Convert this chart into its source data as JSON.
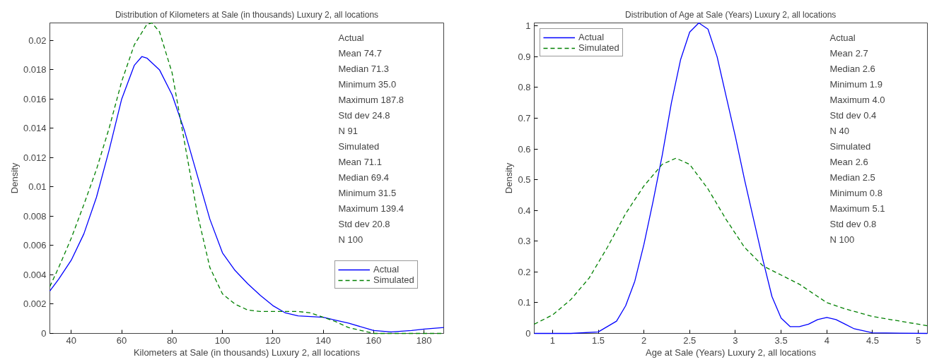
{
  "chart_data": [
    {
      "type": "line",
      "title": "Distribution of Kilometers at Sale (in thousands) Luxury 2, all locations",
      "xlabel": "Kilometers at Sale (in thousands) Luxury 2, all locations",
      "ylabel": "Density",
      "xlim": [
        31.5,
        187.8
      ],
      "xticks": [
        40,
        60,
        80,
        100,
        120,
        140,
        160,
        180
      ],
      "ylim": [
        0,
        0.0212
      ],
      "yticks": [
        0,
        0.002,
        0.004,
        0.006,
        0.008,
        0.01,
        0.012,
        0.014,
        0.016,
        0.018,
        0.02
      ],
      "grid": false,
      "legend": "bottom right",
      "annotations": [
        "Actual",
        "Mean 74.7",
        "Median 71.3",
        "Minimum 35.0",
        "Maximum 187.8",
        "Std dev 24.8",
        "N 91",
        "Simulated",
        "Mean 71.1",
        "Median 69.4",
        "Minimum 31.5",
        "Maximum 139.4",
        "Std dev 20.8",
        "N 100"
      ],
      "series": [
        {
          "name": "Actual",
          "color": "#0000ff",
          "line_style": "solid",
          "x": [
            31.5,
            35,
            40,
            45,
            50,
            55,
            60,
            65,
            68,
            70,
            75,
            80,
            85,
            90,
            95,
            100,
            105,
            110,
            115,
            120,
            125,
            130,
            140,
            145,
            150,
            160,
            167,
            175,
            180,
            187.8
          ],
          "values": [
            0.0029,
            0.0037,
            0.005,
            0.0068,
            0.0093,
            0.0125,
            0.016,
            0.0183,
            0.0189,
            0.0188,
            0.018,
            0.0163,
            0.0138,
            0.0108,
            0.0078,
            0.0055,
            0.0043,
            0.0034,
            0.0026,
            0.0019,
            0.0014,
            0.0012,
            0.0011,
            0.0009,
            0.0007,
            0.0002,
            0.0001,
            0.0002,
            0.0003,
            0.0004
          ]
        },
        {
          "name": "Simulated",
          "color": "#008000",
          "line_style": "dashed",
          "x": [
            31.5,
            35,
            40,
            45,
            50,
            55,
            60,
            65,
            70,
            72,
            75,
            80,
            85,
            90,
            95,
            100,
            105,
            110,
            115,
            120,
            130,
            135,
            140,
            145,
            150,
            155,
            160,
            187.8
          ],
          "values": [
            0.0032,
            0.0045,
            0.0065,
            0.0088,
            0.0112,
            0.014,
            0.0172,
            0.0197,
            0.0211,
            0.0212,
            0.0206,
            0.0178,
            0.013,
            0.0082,
            0.0045,
            0.0027,
            0.002,
            0.0016,
            0.0015,
            0.0015,
            0.0015,
            0.0014,
            0.0011,
            0.0008,
            0.0004,
            0.0002,
            0.0,
            0.0
          ]
        }
      ]
    },
    {
      "type": "line",
      "title": "Distribution of Age at Sale (Years) Luxury 2, all locations",
      "xlabel": "Age at Sale (Years) Luxury 2, all locations",
      "ylabel": "Density",
      "xlim": [
        0.8,
        5.1
      ],
      "xticks": [
        1,
        1.5,
        2,
        2.5,
        3,
        3.5,
        4,
        4.5,
        5
      ],
      "ylim": [
        0,
        1.01
      ],
      "yticks": [
        0,
        0.1,
        0.2,
        0.3,
        0.4,
        0.5,
        0.6,
        0.7,
        0.8,
        0.9,
        1
      ],
      "grid": false,
      "legend": "top left",
      "annotations": [
        "Actual",
        "Mean 2.7",
        "Median 2.6",
        "Minimum 1.9",
        "Maximum 4.0",
        "Std dev 0.4",
        "N 40",
        "Simulated",
        "Mean 2.6",
        "Median 2.5",
        "Minimum 0.8",
        "Maximum 5.1",
        "Std dev 0.8",
        "N 100"
      ],
      "series": [
        {
          "name": "Actual",
          "color": "#0000ff",
          "line_style": "solid",
          "x": [
            0.8,
            1.2,
            1.5,
            1.7,
            1.8,
            1.9,
            2.0,
            2.1,
            2.2,
            2.3,
            2.4,
            2.5,
            2.6,
            2.7,
            2.8,
            2.9,
            3.0,
            3.1,
            3.2,
            3.3,
            3.4,
            3.5,
            3.6,
            3.7,
            3.8,
            3.9,
            4.0,
            4.1,
            4.2,
            4.3,
            4.5,
            5.1
          ],
          "values": [
            0,
            0,
            0.005,
            0.04,
            0.09,
            0.17,
            0.29,
            0.43,
            0.58,
            0.75,
            0.89,
            0.98,
            1.01,
            0.99,
            0.9,
            0.77,
            0.64,
            0.5,
            0.37,
            0.24,
            0.12,
            0.05,
            0.022,
            0.022,
            0.03,
            0.045,
            0.052,
            0.045,
            0.03,
            0.015,
            0.002,
            0
          ]
        },
        {
          "name": "Simulated",
          "color": "#008000",
          "line_style": "dashed",
          "x": [
            0.8,
            1.0,
            1.2,
            1.4,
            1.6,
            1.8,
            2.0,
            2.2,
            2.35,
            2.5,
            2.7,
            2.9,
            3.1,
            3.3,
            3.5,
            3.7,
            3.9,
            4.0,
            4.2,
            4.5,
            4.8,
            5.1
          ],
          "values": [
            0.03,
            0.06,
            0.11,
            0.18,
            0.28,
            0.39,
            0.48,
            0.55,
            0.57,
            0.55,
            0.47,
            0.37,
            0.28,
            0.22,
            0.19,
            0.16,
            0.12,
            0.1,
            0.08,
            0.055,
            0.04,
            0.025
          ]
        }
      ]
    }
  ]
}
